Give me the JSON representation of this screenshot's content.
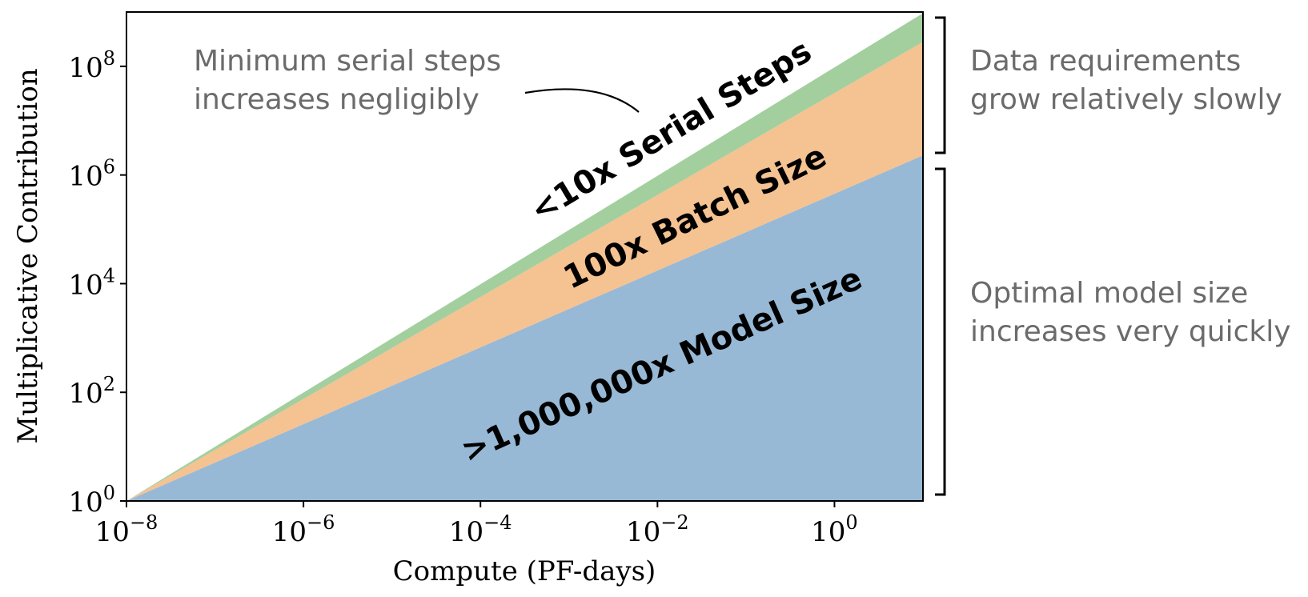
{
  "chart_data": {
    "type": "area",
    "title": "",
    "xlabel": "Compute (PF-days)",
    "ylabel": "Multiplicative Contribution",
    "x_scale": "log",
    "y_scale": "log",
    "xlim": [
      1e-08,
      10
    ],
    "ylim": [
      1,
      1000000000.0
    ],
    "x_ticks": [
      {
        "value": 1e-08,
        "base": "10",
        "exp": "−8"
      },
      {
        "value": 1e-06,
        "base": "10",
        "exp": "−6"
      },
      {
        "value": 0.0001,
        "base": "10",
        "exp": "−4"
      },
      {
        "value": 0.01,
        "base": "10",
        "exp": "−2"
      },
      {
        "value": 1,
        "base": "10",
        "exp": "0"
      }
    ],
    "y_ticks": [
      {
        "value": 1,
        "base": "10",
        "exp": "0"
      },
      {
        "value": 100,
        "base": "10",
        "exp": "2"
      },
      {
        "value": 10000,
        "base": "10",
        "exp": "4"
      },
      {
        "value": 1000000,
        "base": "10",
        "exp": "6"
      },
      {
        "value": 100000000,
        "base": "10",
        "exp": "8"
      }
    ],
    "x": [
      1e-08,
      10
    ],
    "series": [
      {
        "key": "model",
        "label": ">1,000,000x Model Size",
        "color": "#97b9d6",
        "cumulative": [
          1,
          2300000.0
        ]
      },
      {
        "key": "batch",
        "label": "100x Batch Size",
        "color": "#f5c292",
        "cumulative": [
          1,
          280000000.0
        ]
      },
      {
        "key": "serial",
        "label": "<10x Serial Steps",
        "color": "#a3cf9f",
        "cumulative": [
          1,
          950000000.0
        ]
      }
    ],
    "annotations": {
      "serial_note": [
        "Minimum serial steps",
        "increases negligibly"
      ],
      "data_note": [
        "Data requirements",
        "grow relatively slowly"
      ],
      "model_note": [
        "Optimal model size",
        "increases very quickly"
      ]
    },
    "grid": false,
    "legend": "none"
  }
}
